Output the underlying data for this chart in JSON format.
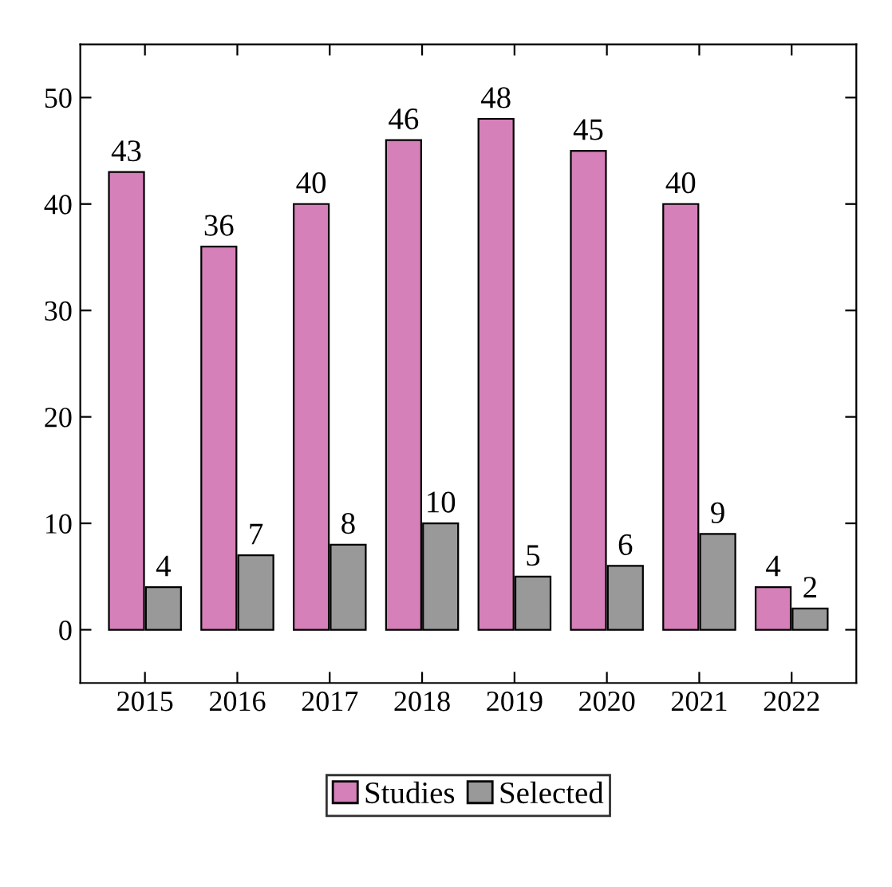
{
  "chart_data": {
    "type": "bar",
    "categories": [
      "2015",
      "2016",
      "2017",
      "2018",
      "2019",
      "2020",
      "2021",
      "2022"
    ],
    "series": [
      {
        "name": "Studies",
        "color": "#d580b8",
        "values": [
          43,
          36,
          40,
          46,
          48,
          45,
          40,
          4
        ]
      },
      {
        "name": "Selected",
        "color": "#999999",
        "values": [
          4,
          7,
          8,
          10,
          5,
          6,
          9,
          2
        ]
      }
    ],
    "ylim": [
      -5,
      55
    ],
    "yticks": [
      0,
      10,
      20,
      30,
      40,
      50
    ],
    "data_labels": true,
    "legend": "bottom",
    "grid": false
  }
}
